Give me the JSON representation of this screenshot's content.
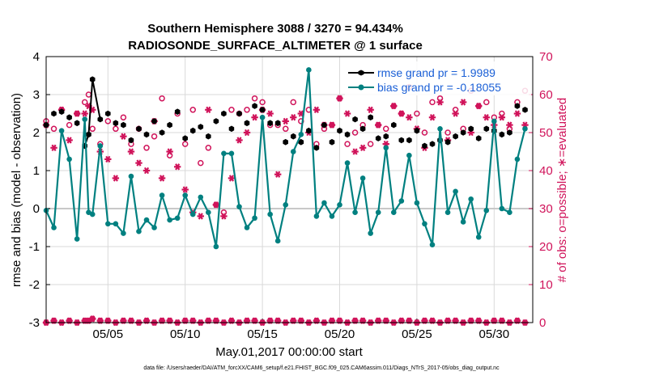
{
  "chart_data": {
    "type": "line",
    "title": "Southern Hemisphere 3088 / 3270 = 94.434%",
    "subtitle": "RADIOSONDE_SURFACE_ALTIMETER @ 1 surface",
    "xlabel": "May.01,2017 00:00:00 start",
    "ylabel_left": "rmse and bias (model - observation)",
    "ylabel_right": "# of obs: o=possible; ∗=evaluated",
    "footnote": "data file: /Users/raeder/DAI/ATM_forcXX/CAM6_setup/f.e21.FHIST_BGC.f09_025.CAM6assim.011/Diags_NTrS_2017-05/obs_diag_output.nc",
    "xlim": [
      1,
      32.5
    ],
    "ylim_left": [
      -3,
      4
    ],
    "ylim_right": [
      0,
      70
    ],
    "x_ticks": [
      5,
      10,
      15,
      20,
      25,
      30
    ],
    "x_tick_labels": [
      "05/05",
      "05/10",
      "05/15",
      "05/20",
      "05/25",
      "05/30"
    ],
    "y_ticks_left": [
      -3,
      -2,
      -1,
      0,
      1,
      2,
      3,
      4
    ],
    "y_tick_labels_left": [
      "-3",
      "-2",
      "-1",
      "0",
      "1",
      "2",
      "3",
      "4"
    ],
    "y_ticks_right": [
      0,
      10,
      20,
      30,
      40,
      50,
      60,
      70
    ],
    "y_tick_labels_right": [
      "0",
      "10",
      "20",
      "30",
      "40",
      "50",
      "60",
      "70"
    ],
    "legend": {
      "rmse": "rmse grand pr = 1.9989",
      "bias": "bias grand pr = -0.18055"
    },
    "colors": {
      "rmse": "#000000",
      "bias": "#008080",
      "counts": "#d0135a",
      "axis": "#000000",
      "legend_text": "#1a5fd6",
      "zero_line": "#c8c8c8",
      "grid": "#d9d9d9"
    },
    "series": [
      {
        "name": "rmse",
        "axis": "left",
        "x": [
          1.0,
          1.5,
          2.0,
          2.5,
          3.0,
          3.5,
          3.75,
          4.0,
          4.5,
          5.0,
          5.5,
          6.0,
          6.5,
          7.0,
          7.5,
          8.0,
          8.5,
          9.0,
          9.5,
          10.0,
          10.5,
          11.0,
          11.5,
          12.0,
          12.5,
          13.0,
          13.5,
          14.0,
          14.5,
          15.0,
          15.5,
          16.0,
          16.5,
          17.0,
          17.5,
          18.0,
          18.5,
          19.0,
          19.5,
          20.0,
          20.5,
          21.0,
          21.5,
          22.0,
          22.5,
          23.0,
          23.5,
          24.0,
          24.5,
          25.0,
          25.5,
          26.0,
          26.5,
          27.0,
          27.5,
          28.0,
          28.5,
          29.0,
          29.5,
          30.0,
          30.5,
          31.0,
          31.5,
          32.0
        ],
        "values": [
          2.2,
          2.5,
          2.55,
          2.4,
          2.25,
          1.65,
          1.95,
          3.4,
          2.35,
          2.5,
          2.25,
          2.2,
          1.8,
          2.1,
          1.95,
          2.3,
          2.0,
          2.2,
          2.55,
          1.85,
          2.05,
          2.15,
          1.9,
          2.3,
          2.5,
          2.1,
          2.5,
          2.25,
          2.7,
          2.6,
          2.25,
          2.25,
          1.75,
          1.9,
          1.75,
          2.05,
          1.6,
          2.2,
          1.75,
          2.05,
          1.95,
          2.35,
          2.1,
          2.4,
          1.85,
          1.9,
          2.2,
          1.8,
          1.8,
          2.05,
          1.65,
          1.7,
          1.8,
          1.75,
          1.9,
          2.0,
          2.1,
          1.85,
          2.1,
          2.05,
          1.95,
          2.0,
          2.7,
          2.6
        ]
      },
      {
        "name": "bias",
        "axis": "left",
        "x": [
          1.0,
          1.5,
          2.0,
          2.5,
          3.0,
          3.5,
          3.75,
          4.0,
          4.5,
          5.0,
          5.5,
          6.0,
          6.5,
          7.0,
          7.5,
          8.0,
          8.5,
          9.0,
          9.5,
          10.0,
          10.5,
          11.0,
          11.5,
          12.0,
          12.5,
          13.0,
          13.5,
          14.0,
          14.5,
          15.0,
          15.5,
          16.0,
          16.5,
          17.0,
          17.5,
          18.0,
          18.5,
          19.0,
          19.5,
          20.0,
          20.5,
          21.0,
          21.5,
          22.0,
          22.5,
          23.0,
          23.5,
          24.0,
          24.5,
          25.0,
          25.5,
          26.0,
          26.5,
          27.0,
          27.5,
          28.0,
          28.5,
          29.0,
          29.5,
          30.0,
          30.5,
          31.0,
          31.5,
          32.0
        ],
        "values": [
          -0.05,
          -0.5,
          2.05,
          1.3,
          -0.8,
          2.35,
          -0.1,
          -0.15,
          1.65,
          -0.4,
          -0.4,
          -0.65,
          0.85,
          -0.6,
          -0.3,
          -0.5,
          0.35,
          -0.3,
          -0.25,
          0.35,
          -0.15,
          0.3,
          -0.1,
          -1.0,
          1.45,
          1.45,
          0.05,
          -0.5,
          -0.25,
          2.4,
          -0.15,
          -0.85,
          0.1,
          1.5,
          1.95,
          3.65,
          -0.2,
          0.15,
          -0.2,
          0.1,
          1.2,
          -0.1,
          0.8,
          -0.65,
          -0.1,
          1.6,
          -0.1,
          0.2,
          1.4,
          0.15,
          -0.4,
          -0.95,
          2.1,
          -0.1,
          0.45,
          -0.35,
          0.25,
          -0.75,
          -0.05,
          2.3,
          0.0,
          -0.1,
          1.3,
          2.1
        ],
        "note": "x positions are approximate sample times within each day"
      }
    ],
    "possible_counts": {
      "x": [
        1.0,
        1.5,
        2.0,
        2.5,
        3.0,
        3.5,
        3.75,
        4.0,
        4.5,
        5.0,
        5.5,
        6.0,
        6.5,
        7.0,
        7.5,
        8.0,
        8.5,
        9.0,
        9.5,
        10.0,
        10.5,
        11.0,
        11.5,
        12.0,
        12.5,
        13.0,
        13.5,
        14.0,
        14.5,
        15.0,
        15.5,
        16.0,
        16.5,
        17.0,
        17.5,
        18.0,
        18.5,
        19.0,
        19.5,
        20.0,
        20.5,
        21.0,
        21.5,
        22.0,
        22.5,
        23.0,
        23.5,
        24.0,
        24.5,
        25.0,
        25.5,
        26.0,
        26.5,
        27.0,
        27.5,
        28.0,
        28.5,
        29.0,
        29.5,
        30.0,
        30.5,
        31.0,
        31.5,
        32.0
      ],
      "values": [
        53,
        51,
        56,
        52,
        55,
        58,
        60,
        51,
        47,
        53,
        51,
        54,
        47,
        51,
        46,
        49,
        59,
        44,
        55,
        47,
        56,
        42,
        46,
        31,
        29,
        56,
        55,
        56,
        59,
        58,
        52,
        52,
        51,
        58,
        53,
        56,
        47,
        51,
        52,
        59,
        47,
        50,
        52,
        47,
        52,
        51,
        57,
        55,
        62,
        55,
        50,
        58,
        59,
        50,
        56,
        51,
        61,
        57,
        58,
        54,
        55,
        51,
        58,
        61
      ]
    },
    "evaluated_counts": {
      "x": [
        1.0,
        1.5,
        2.0,
        2.5,
        3.0,
        3.5,
        3.75,
        4.0,
        4.5,
        5.0,
        5.5,
        6.0,
        6.5,
        7.0,
        7.5,
        8.0,
        8.5,
        9.0,
        9.5,
        10.0,
        10.5,
        11.0,
        11.5,
        12.0,
        12.5,
        13.0,
        13.5,
        14.0,
        14.5,
        15.0,
        15.5,
        16.0,
        16.5,
        17.0,
        17.5,
        18.0,
        18.5,
        19.0,
        19.5,
        20.0,
        20.5,
        21.0,
        21.5,
        22.0,
        22.5,
        23.0,
        23.5,
        24.0,
        24.5,
        25.0,
        25.5,
        26.0,
        26.5,
        27.0,
        27.5,
        28.0,
        28.5,
        29.0,
        29.5,
        30.0,
        30.5,
        31.0,
        31.5,
        32.0
      ],
      "values": [
        52,
        46,
        56,
        48,
        55,
        55,
        57,
        56,
        45,
        43,
        38,
        49,
        45,
        42,
        40,
        53,
        38,
        45,
        41,
        35,
        29,
        28,
        56,
        31,
        28,
        38,
        48,
        50,
        54,
        56,
        55,
        39,
        53,
        54,
        55,
        50,
        56,
        52,
        52,
        59,
        55,
        45,
        46,
        56,
        52,
        47,
        57,
        55,
        54,
        51,
        46,
        54,
        58,
        48,
        55,
        58,
        50,
        57,
        54,
        52,
        54,
        52,
        55,
        52
      ]
    },
    "bottom_possible": {
      "x": [
        1.0,
        1.5,
        2.0,
        2.5,
        3.0,
        3.5,
        3.75,
        4.0,
        4.5,
        5.0,
        5.5,
        6.0,
        6.5,
        7.0,
        7.5,
        8.0,
        8.5,
        9.0,
        9.5,
        10.0,
        10.5,
        11.0,
        11.5,
        12.0,
        12.5,
        13.0,
        13.5,
        14.0,
        14.5,
        15.0,
        15.5,
        16.0,
        16.5,
        17.0,
        17.5,
        18.0,
        18.5,
        19.0,
        19.5,
        20.0,
        20.5,
        21.0,
        21.5,
        22.0,
        22.5,
        23.0,
        23.5,
        24.0,
        24.5,
        25.0,
        25.5,
        26.0,
        26.5,
        27.0,
        27.5,
        28.0,
        28.5,
        29.0,
        29.5,
        30.0,
        30.5,
        31.0,
        31.5,
        32.0
      ],
      "values": [
        0,
        1,
        0,
        1,
        0,
        1,
        1,
        2,
        1,
        1,
        0,
        1,
        1,
        0,
        1,
        0,
        1,
        1,
        0,
        1,
        1,
        0,
        1,
        1,
        0,
        1,
        0,
        1,
        1,
        0,
        1,
        1,
        0,
        1,
        1,
        0,
        1,
        0,
        1,
        1,
        0,
        1,
        1,
        0,
        1,
        1,
        0,
        1,
        1,
        0,
        1,
        1,
        0,
        1,
        1,
        0,
        1,
        1,
        0,
        1,
        1,
        0,
        1,
        0
      ]
    },
    "bottom_evaluated": {
      "x": [
        1.0,
        1.5,
        2.0,
        2.5,
        3.0,
        3.5,
        3.75,
        4.0,
        4.5,
        5.0,
        5.5,
        6.0,
        6.5,
        7.0,
        7.5,
        8.0,
        8.5,
        9.0,
        9.5,
        10.0,
        10.5,
        11.0,
        11.5,
        12.0,
        12.5,
        13.0,
        13.5,
        14.0,
        14.5,
        15.0,
        15.5,
        16.0,
        16.5,
        17.0,
        17.5,
        18.0,
        18.5,
        19.0,
        19.5,
        20.0,
        20.5,
        21.0,
        21.5,
        22.0,
        22.5,
        23.0,
        23.5,
        24.0,
        24.5,
        25.0,
        25.5,
        26.0,
        26.5,
        27.0,
        27.5,
        28.0,
        28.5,
        29.0,
        29.5,
        30.0,
        30.5,
        31.0,
        31.5,
        32.0
      ],
      "values": [
        0,
        1,
        0,
        1,
        0,
        1,
        1,
        2,
        1,
        1,
        0,
        1,
        1,
        0,
        1,
        0,
        1,
        1,
        0,
        1,
        1,
        0,
        1,
        1,
        0,
        1,
        0,
        1,
        1,
        0,
        1,
        1,
        0,
        1,
        1,
        0,
        1,
        0,
        1,
        1,
        0,
        1,
        1,
        0,
        1,
        1,
        0,
        1,
        1,
        0,
        1,
        1,
        0,
        1,
        1,
        0,
        1,
        1,
        0,
        1,
        1,
        0,
        1,
        0
      ]
    }
  }
}
